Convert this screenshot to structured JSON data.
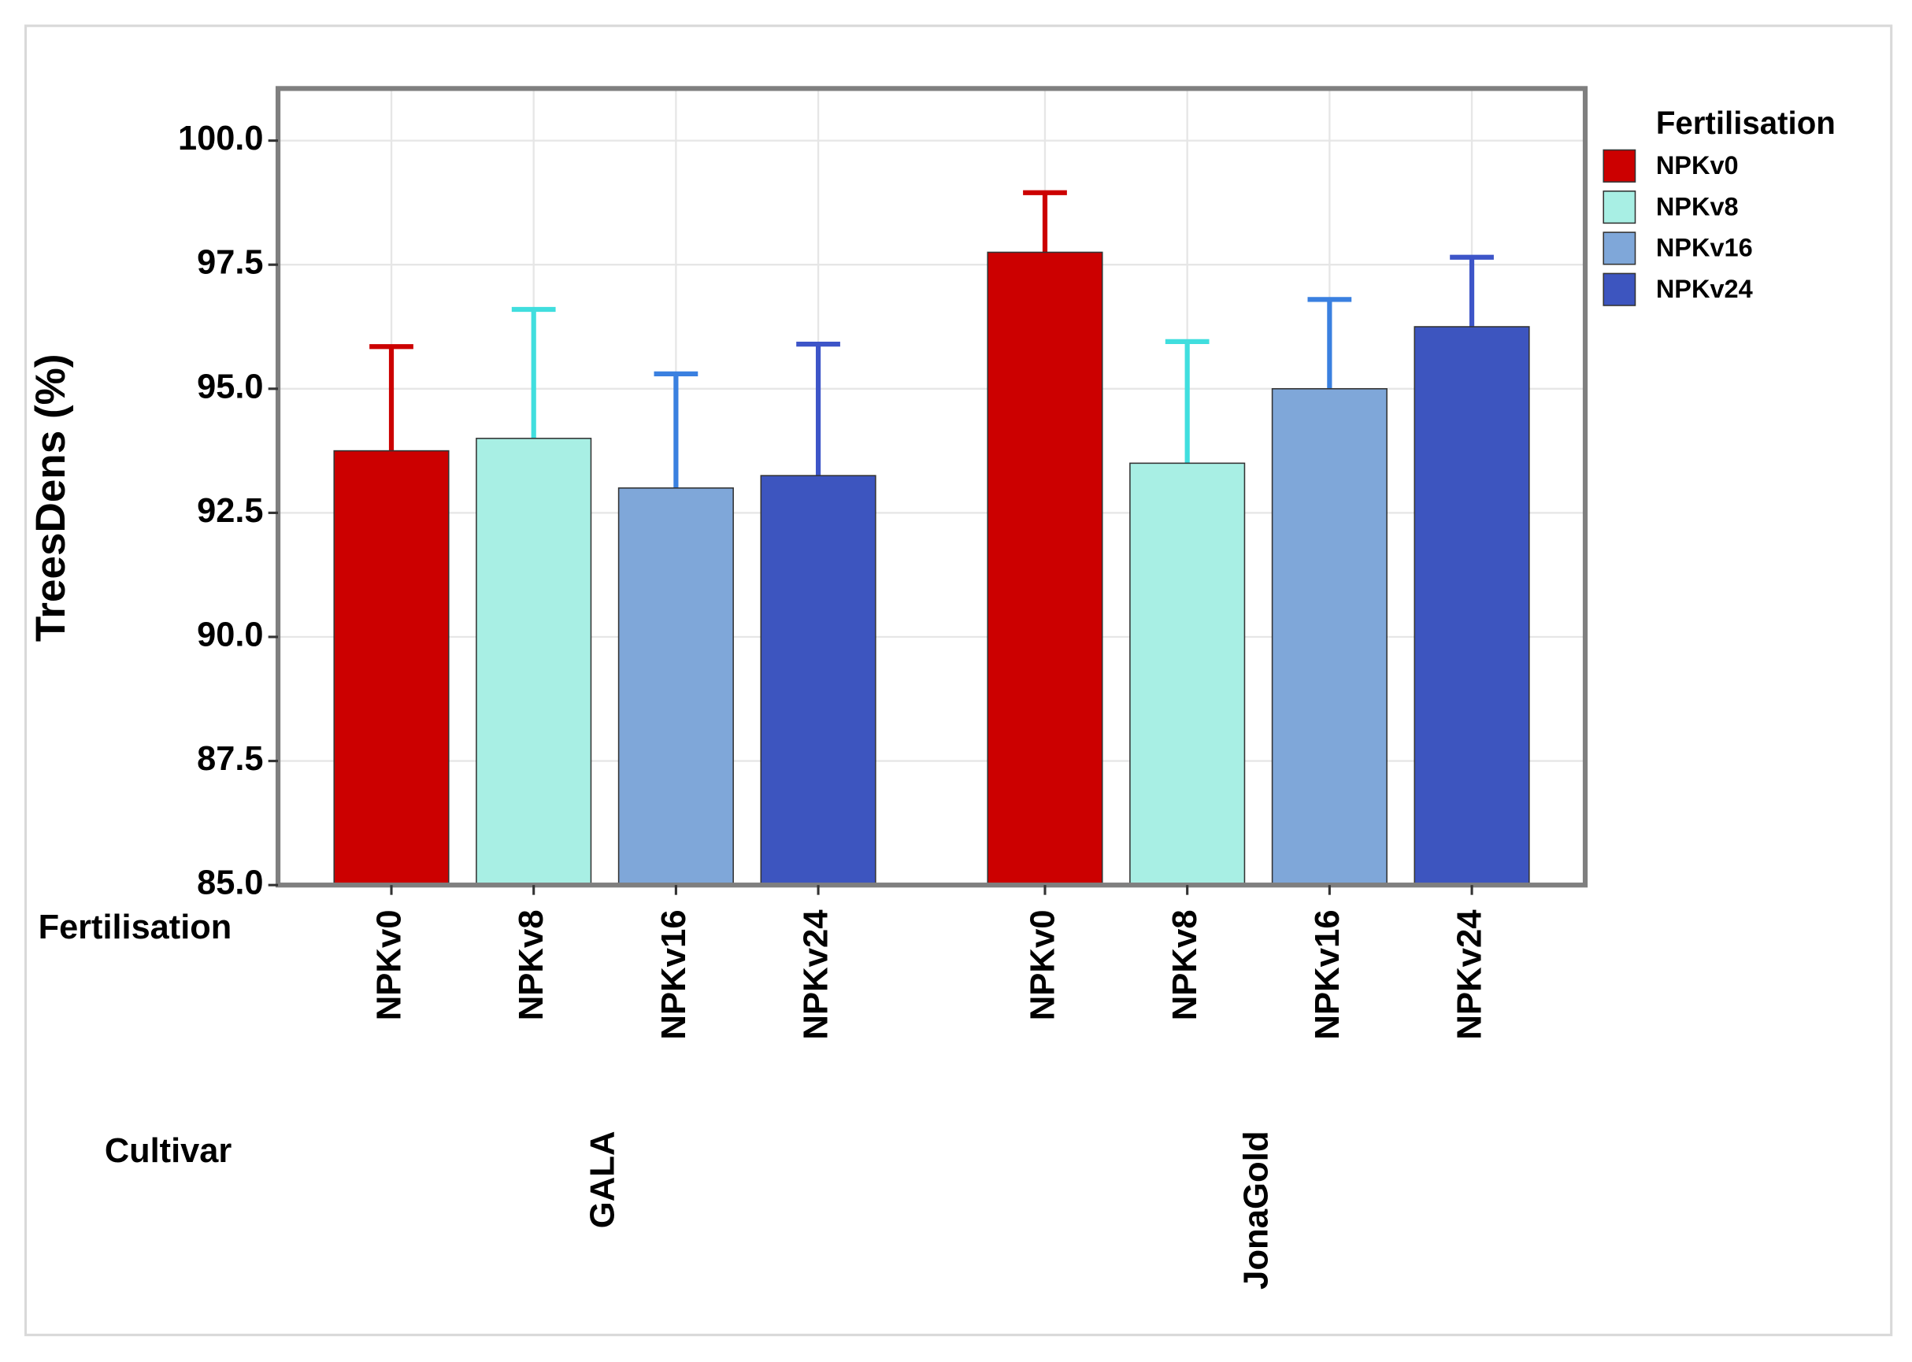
{
  "chart_data": {
    "type": "bar",
    "y_label": "TreesDens (%)",
    "row_labels": [
      "Fertilisation",
      "Cultivar"
    ],
    "legend_title": "Fertilisation",
    "legend_position": "right",
    "grid": true,
    "categories": [
      "GALA",
      "JonaGold"
    ],
    "series": [
      {
        "name": "NPKv0",
        "color": "#cc0000",
        "error_color": "#cc0000",
        "values": [
          93.75,
          97.75
        ],
        "errors": [
          2.1,
          1.2
        ]
      },
      {
        "name": "NPKv8",
        "color": "#a8efe4",
        "error_color": "#40dede",
        "values": [
          94.0,
          93.5
        ],
        "errors": [
          2.6,
          2.45
        ]
      },
      {
        "name": "NPKv16",
        "color": "#7fa7d9",
        "error_color": "#3a80e0",
        "values": [
          93.0,
          95.0
        ],
        "errors": [
          2.3,
          1.8
        ]
      },
      {
        "name": "NPKv24",
        "color": "#3d55bf",
        "error_color": "#3d55c8",
        "values": [
          93.25,
          96.25
        ],
        "errors": [
          2.65,
          1.4
        ]
      }
    ],
    "ylim": [
      85,
      101.05
    ],
    "yticks": [
      {
        "value": 85,
        "label": "85.0"
      },
      87.5,
      {
        "value": 90,
        "label": "90.0"
      },
      92.5,
      {
        "value": 95,
        "label": "95.0"
      },
      97.5,
      {
        "value": 100,
        "label": "100.0"
      }
    ]
  }
}
